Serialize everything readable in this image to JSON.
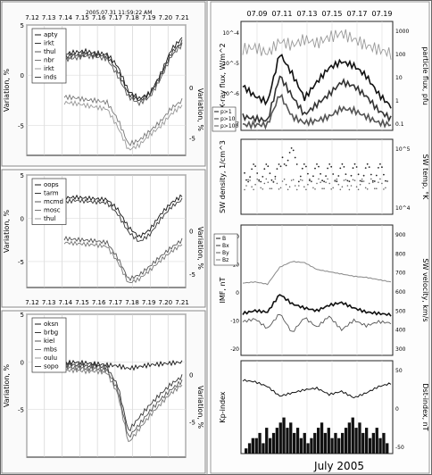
{
  "timestamp": "2005.07.31 11:59:22 AM",
  "left_charts": [
    {
      "id": "top",
      "top_ticks": [
        "7.12",
        "7.13",
        "7.14",
        "7.15",
        "7.16",
        "7.17",
        "7.18",
        "7.19",
        "7.20",
        "7.21"
      ],
      "bottom_ticks": [],
      "ylabel_left": "Variation, %",
      "ylabel_right": "Variation, %",
      "left_ticks": [
        {
          "v": 5,
          "t": "5"
        },
        {
          "v": 0,
          "t": "0"
        },
        {
          "v": -5,
          "t": "-5"
        }
      ],
      "right_ticks": [
        {
          "v": 0,
          "t": "0"
        },
        {
          "v": -5,
          "t": "-5"
        }
      ],
      "legend": [
        "apty",
        "irkt",
        "thul",
        "nbr",
        "irkt",
        "inds"
      ]
    },
    {
      "id": "middle",
      "top_ticks": [],
      "bottom_ticks": [
        "7.12",
        "7.13",
        "7.14",
        "7.15",
        "7.16",
        "7.17",
        "7.18",
        "7.19",
        "7.20",
        "7.21"
      ],
      "ylabel_left": "Variation, %",
      "ylabel_right": "Variation, %",
      "left_ticks": [
        {
          "v": 5,
          "t": "5"
        },
        {
          "v": 0,
          "t": "0"
        },
        {
          "v": -5,
          "t": "-5"
        }
      ],
      "right_ticks": [
        {
          "v": 0,
          "t": "0"
        },
        {
          "v": -5,
          "t": "-5"
        }
      ],
      "legend": [
        "oops",
        "tarm",
        "mcmd",
        "mosc",
        "thul"
      ]
    },
    {
      "id": "bottom",
      "top_ticks": [],
      "bottom_ticks": [],
      "ylabel_left": "Variation, %",
      "ylabel_right": "Variation, %",
      "left_ticks": [
        {
          "v": 5,
          "t": "5"
        },
        {
          "v": 0,
          "t": "0"
        },
        {
          "v": -5,
          "t": "-5"
        }
      ],
      "right_ticks": [
        {
          "v": 0,
          "t": "0"
        },
        {
          "v": -5,
          "t": "-5"
        }
      ],
      "legend": [
        "oksn",
        "brbg",
        "kiel",
        "mbs",
        "oulu",
        "sopo"
      ]
    }
  ],
  "right_panel": {
    "top_ticks": [
      "07.09",
      "07.11",
      "07.13",
      "07.15",
      "07.17",
      "07.19"
    ],
    "bottom_ticks": [
      "7.09",
      "7.11",
      "7.13",
      "7.15",
      "7.17",
      "7.19"
    ],
    "xlabel": "July 2005",
    "panels": [
      {
        "id": "flux",
        "ylabel_left": "X-ray flux, W/m^2",
        "ylabel_right": "particle flux, pfu",
        "left_ticks": [
          "10^-4",
          "10^-5",
          "10^-6",
          "10^-7"
        ],
        "right_ticks": [
          "1000",
          "100",
          "10",
          "1",
          "0.1"
        ],
        "legend": [
          "p>1",
          "p>10",
          "p>100"
        ]
      },
      {
        "id": "sw-density",
        "ylabel_left": "SW density, 1/cm^3",
        "ylabel_right": "SW temp, °K",
        "left_ticks": [],
        "right_ticks": [
          "10^5",
          "10^4"
        ],
        "legend": []
      },
      {
        "id": "imf",
        "ylabel_left": "IMF, nT",
        "ylabel_right": "SW velocity, km/s",
        "left_ticks": [
          "20",
          "10",
          "0",
          "-10",
          "-20"
        ],
        "right_ticks": [
          "900",
          "800",
          "700",
          "600",
          "500",
          "400",
          "300"
        ],
        "legend": [
          "B",
          "Bx",
          "By",
          "Bz"
        ]
      },
      {
        "id": "dst-kp",
        "ylabel_left": "Kp-index",
        "ylabel_right": "Dst-index, nT",
        "left_ticks": [],
        "right_ticks": [
          "50",
          "0",
          "-50"
        ],
        "legend": []
      }
    ]
  },
  "chart_data": [
    {
      "type": "line",
      "title": "2005.07.31 11:59:22 AM",
      "ylabel": "Variation, %",
      "x_range": [
        "7.12",
        "7.21"
      ],
      "ylim": [
        -8,
        5
      ],
      "series": [
        {
          "name": "apty",
          "values": [
            2.3,
            2.5,
            2.6,
            2.4,
            2.3,
            1.0,
            -1.6,
            -2.4,
            -1.8,
            0.2,
            2.8,
            4.0
          ]
        },
        {
          "name": "irkt",
          "values": [
            2.0,
            2.2,
            2.3,
            2.2,
            2.1,
            0.5,
            -1.9,
            -2.6,
            -1.9,
            0.0,
            2.4,
            3.6
          ]
        },
        {
          "name": "thul",
          "values": [
            1.7,
            1.9,
            2.1,
            2.0,
            1.8,
            0.0,
            -2.2,
            -2.9,
            -2.2,
            -0.3,
            2.1,
            3.3
          ]
        },
        {
          "name": "irkt",
          "values": [
            -2.2,
            -2.3,
            -2.5,
            -2.6,
            -2.8,
            -4.6,
            -7.2,
            -6.8,
            -5.8,
            -4.8,
            -3.4,
            -2.6
          ]
        },
        {
          "name": "inds",
          "values": [
            -2.8,
            -2.9,
            -3.1,
            -3.3,
            -3.5,
            -5.4,
            -7.8,
            -7.3,
            -6.2,
            -5.3,
            -4.0,
            -3.1
          ]
        }
      ]
    },
    {
      "type": "line",
      "ylabel": "Variation, %",
      "x_range": [
        "7.12",
        "7.21"
      ],
      "ylim": [
        -8,
        5
      ],
      "series": [
        {
          "name": "oops",
          "values": [
            2.6,
            2.7,
            2.6,
            2.5,
            2.4,
            1.2,
            -1.0,
            -2.2,
            -1.3,
            0.6,
            2.0,
            2.9
          ]
        },
        {
          "name": "tarm",
          "values": [
            2.1,
            2.3,
            2.2,
            2.1,
            2.0,
            0.6,
            -1.6,
            -2.8,
            -1.9,
            0.0,
            1.5,
            2.4
          ]
        },
        {
          "name": "mcmd",
          "values": [
            -2.4,
            -2.5,
            -2.6,
            -2.7,
            -2.9,
            -4.8,
            -7.4,
            -6.9,
            -5.8,
            -4.6,
            -3.5,
            -2.6
          ]
        },
        {
          "name": "mosc",
          "values": [
            -2.9,
            -3.0,
            -3.1,
            -3.2,
            -3.4,
            -5.3,
            -7.9,
            -7.4,
            -6.3,
            -5.1,
            -4.0,
            -3.1
          ]
        }
      ]
    },
    {
      "type": "line",
      "ylabel": "Variation, %",
      "x_range": [
        "7.12",
        "7.21"
      ],
      "ylim": [
        -10,
        5
      ],
      "series": [
        {
          "name": "oksn",
          "values": [
            0.0,
            0.1,
            0.0,
            -0.1,
            -0.2,
            -0.3,
            -0.6,
            -0.4,
            -0.2,
            -0.1,
            0.0,
            0.1
          ]
        },
        {
          "name": "brbg",
          "values": [
            -0.2,
            -0.2,
            -0.3,
            -0.3,
            -0.5,
            -2.5,
            -7.5,
            -6.0,
            -4.6,
            -3.4,
            -2.3,
            -1.5
          ]
        },
        {
          "name": "kiel",
          "values": [
            -0.5,
            -0.5,
            -0.6,
            -0.6,
            -0.8,
            -3.0,
            -8.2,
            -6.8,
            -5.3,
            -4.0,
            -2.9,
            -2.0
          ]
        },
        {
          "name": "oulu",
          "values": [
            -0.8,
            -0.8,
            -0.9,
            -0.9,
            -1.1,
            -3.4,
            -8.8,
            -7.3,
            -5.8,
            -4.5,
            -3.3,
            -2.4
          ]
        }
      ]
    },
    {
      "type": "line",
      "ylabel": "X-ray flux, W/m^2",
      "xlabel": "July 2005",
      "x_range": [
        "7.06",
        "7.20"
      ],
      "series": [
        {
          "name": "p>1",
          "values": [
            2.0,
            1.5,
            1.2,
            3.6,
            2.6,
            1.4,
            2.2,
            2.9,
            3.2,
            3.0,
            2.5,
            1.6,
            1.0
          ]
        },
        {
          "name": "p>10",
          "values": [
            0.5,
            0.4,
            0.3,
            2.5,
            1.5,
            0.6,
            1.1,
            1.6,
            2.2,
            2.0,
            1.5,
            0.8,
            0.4
          ]
        },
        {
          "name": "p>100",
          "values": [
            0.1,
            0.1,
            0.1,
            1.6,
            0.5,
            0.2,
            0.3,
            0.5,
            0.9,
            0.8,
            0.5,
            0.2,
            0.1
          ]
        }
      ]
    },
    {
      "type": "line",
      "ylabel": "IMF, nT",
      "xlabel": "July 2005",
      "x_range": [
        "7.06",
        "7.20"
      ],
      "series": [
        {
          "name": "B",
          "values": [
            8,
            10,
            9,
            22,
            15,
            12,
            10,
            14,
            16,
            12,
            9,
            8,
            7
          ]
        },
        {
          "name": "Bz",
          "values": [
            2,
            4,
            -3,
            8,
            -6,
            5,
            -2,
            6,
            -4,
            3,
            -1,
            2,
            1
          ]
        }
      ]
    },
    {
      "type": "bar",
      "ylabel": "Kp-index",
      "xlabel": "July 2005",
      "categories": [
        "7.06",
        "7.07",
        "7.08",
        "7.09",
        "7.10",
        "7.11",
        "7.12",
        "7.13",
        "7.14",
        "7.15",
        "7.16",
        "7.17",
        "7.18",
        "7.19"
      ],
      "values": [
        2,
        3,
        4,
        6,
        5,
        4,
        3,
        5,
        4,
        4,
        6,
        5,
        4,
        3
      ],
      "ylim": [
        0,
        9
      ]
    }
  ]
}
